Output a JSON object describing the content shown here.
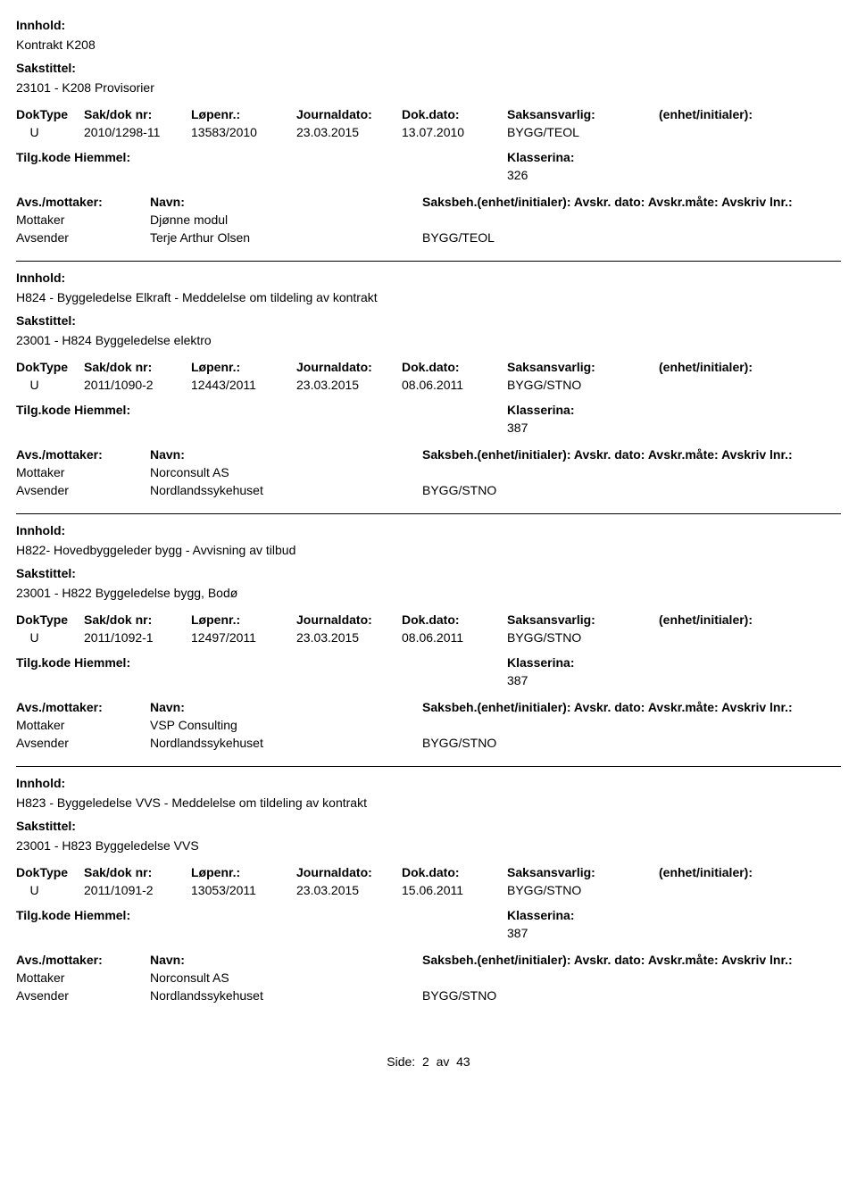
{
  "labels": {
    "innhold": "Innhold:",
    "sakstittel": "Sakstittel:",
    "doktype": "DokType",
    "sakdok": "Sak/dok nr:",
    "lopenr": "Løpenr.:",
    "journaldato": "Journaldato:",
    "dokdato": "Dok.dato:",
    "saksansvarlig": "Saksansvarlig:",
    "enhet": "(enhet/initialer):",
    "tilgkode": "Tilg.kode",
    "hjemmel": "Hiemmel:",
    "klassering": "Klasserina:",
    "avsmottaker": "Avs./mottaker:",
    "navn": "Navn:",
    "saksbeh": "Saksbeh.(enhet/initialer):",
    "avskrdato": "Avskr. dato:",
    "avskrmate": "Avskr.måte:",
    "avskrivlnr": "Avskriv lnr.:",
    "mottaker": "Mottaker",
    "avsender": "Avsender"
  },
  "records": [
    {
      "innhold": "Kontrakt K208",
      "sakstittel": "23101 - K208 Provisorier",
      "doktype": "U",
      "sakdok": "2010/1298-11",
      "lopenr": "13583/2010",
      "journaldato": "23.03.2015",
      "dokdato": "13.07.2010",
      "saksansvarlig": "BYGG/TEOL",
      "klassering": "326",
      "parties": [
        {
          "role_key": "mottaker",
          "name": "Djønne modul",
          "unit": ""
        },
        {
          "role_key": "avsender",
          "name": "Terje Arthur Olsen",
          "unit": "BYGG/TEOL"
        }
      ]
    },
    {
      "innhold": "H824 - Byggeledelse Elkraft - Meddelelse om tildeling av kontrakt",
      "sakstittel": "23001 - H824 Byggeledelse elektro",
      "doktype": "U",
      "sakdok": "2011/1090-2",
      "lopenr": "12443/2011",
      "journaldato": "23.03.2015",
      "dokdato": "08.06.2011",
      "saksansvarlig": "BYGG/STNO",
      "klassering": "387",
      "parties": [
        {
          "role_key": "mottaker",
          "name": "Norconsult AS",
          "unit": ""
        },
        {
          "role_key": "avsender",
          "name": "Nordlandssykehuset",
          "unit": "BYGG/STNO"
        }
      ]
    },
    {
      "innhold": "H822- Hovedbyggeleder bygg - Avvisning av tilbud",
      "sakstittel": "23001 - H822 Byggeledelse bygg, Bodø",
      "doktype": "U",
      "sakdok": "2011/1092-1",
      "lopenr": "12497/2011",
      "journaldato": "23.03.2015",
      "dokdato": "08.06.2011",
      "saksansvarlig": "BYGG/STNO",
      "klassering": "387",
      "parties": [
        {
          "role_key": "mottaker",
          "name": "VSP Consulting",
          "unit": ""
        },
        {
          "role_key": "avsender",
          "name": "Nordlandssykehuset",
          "unit": "BYGG/STNO"
        }
      ]
    },
    {
      "innhold": "H823 - Byggeledelse VVS - Meddelelse om tildeling av kontrakt",
      "sakstittel": "23001 - H823 Byggeledelse VVS",
      "doktype": "U",
      "sakdok": "2011/1091-2",
      "lopenr": "13053/2011",
      "journaldato": "23.03.2015",
      "dokdato": "15.06.2011",
      "saksansvarlig": "BYGG/STNO",
      "klassering": "387",
      "parties": [
        {
          "role_key": "mottaker",
          "name": "Norconsult AS",
          "unit": ""
        },
        {
          "role_key": "avsender",
          "name": "Nordlandssykehuset",
          "unit": "BYGG/STNO"
        }
      ]
    }
  ],
  "footer": {
    "side_label": "Side:",
    "page_current": "2",
    "av_label": "av",
    "page_total": "43"
  }
}
